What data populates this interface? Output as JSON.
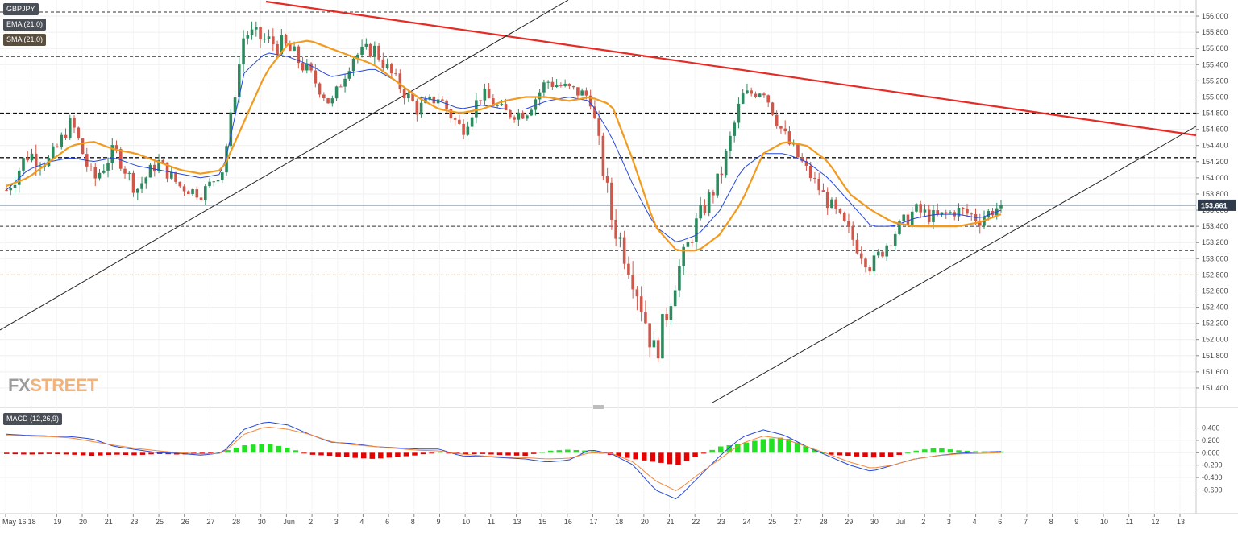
{
  "labels": {
    "symbol": "GBPJPY",
    "ema": "EMA (21,0)",
    "sma": "SMA (21,0)",
    "macd": "MACD (12,26,9)",
    "price_tag": "153.661",
    "watermark_fx": "FX",
    "watermark_street": "STREET"
  },
  "colors": {
    "bull": "#2c8a5e",
    "bear": "#d0584a",
    "ema": "#2547e0",
    "sma": "#f29a1e",
    "trend_red": "#e82a25",
    "trend_black": "#222222",
    "level_orange": "#f29a1e",
    "macd_hist_pos": "#22e022",
    "macd_hist_neg": "#e80000",
    "macd_line": "#2547e0",
    "signal_line": "#f2873a",
    "price_tag_bg": "#2f3b4a"
  },
  "chart_data": [
    {
      "type": "candlestick",
      "title": "GBPJPY",
      "ylim": [
        151.3,
        156.1
      ],
      "y_ticks": [
        "156.000",
        "155.800",
        "155.600",
        "155.400",
        "155.200",
        "155.000",
        "154.800",
        "154.600",
        "154.400",
        "154.200",
        "154.000",
        "153.800",
        "153.600",
        "153.400",
        "153.200",
        "153.000",
        "152.800",
        "152.600",
        "152.400",
        "152.200",
        "152.000",
        "151.800",
        "151.600",
        "151.400"
      ],
      "x_ticks": [
        "May 16",
        "18",
        "19",
        "20",
        "21",
        "23",
        "25",
        "26",
        "27",
        "28",
        "30",
        "Jun",
        "2",
        "3",
        "4",
        "6",
        "8",
        "9",
        "10",
        "11",
        "13",
        "15",
        "16",
        "17",
        "18",
        "20",
        "21",
        "22",
        "23",
        "24",
        "25",
        "27",
        "28",
        "29",
        "30",
        "Jul",
        "2",
        "3",
        "4",
        "6",
        "7",
        "8",
        "9",
        "10",
        "11",
        "12",
        "13"
      ],
      "last_price": 153.661,
      "levels": [
        {
          "value": 156.05,
          "style": "dashed",
          "color": "#333333"
        },
        {
          "value": 155.5,
          "style": "dashed",
          "color": "#333333"
        },
        {
          "value": 154.8,
          "style": "dashed-bold",
          "color": "#111111"
        },
        {
          "value": 154.25,
          "style": "dashed-bold",
          "color": "#111111"
        },
        {
          "value": 153.4,
          "style": "dashed",
          "color": "#333333"
        },
        {
          "value": 153.1,
          "style": "dashed",
          "color": "#333333"
        },
        {
          "value": 152.8,
          "style": "dashed",
          "color": "#f29a1e"
        }
      ],
      "anchors_ohlc": [
        [
          153.85,
          154.15,
          153.5
        ],
        [
          154.3,
          154.7,
          154.0
        ],
        [
          154.2,
          154.5,
          153.9
        ],
        [
          154.7,
          154.9,
          154.45
        ],
        [
          153.95,
          154.25,
          153.6
        ],
        [
          154.35,
          154.5,
          154.0
        ],
        [
          153.85,
          154.15,
          153.65
        ],
        [
          154.2,
          154.45,
          153.95
        ],
        [
          153.9,
          154.1,
          153.7
        ],
        [
          153.8,
          154.1,
          153.7
        ],
        [
          154.1,
          154.3,
          153.95
        ],
        [
          155.8,
          156.0,
          155.4
        ],
        [
          155.7,
          156.0,
          155.4
        ],
        [
          155.6,
          155.9,
          155.2
        ],
        [
          155.3,
          155.5,
          155.0
        ],
        [
          154.9,
          155.1,
          154.7
        ],
        [
          155.5,
          155.7,
          155.2
        ],
        [
          155.6,
          155.8,
          155.3
        ],
        [
          155.2,
          155.4,
          154.9
        ],
        [
          154.85,
          155.1,
          154.6
        ],
        [
          155.0,
          155.2,
          154.8
        ],
        [
          154.6,
          154.9,
          154.2
        ],
        [
          155.05,
          155.2,
          154.8
        ],
        [
          154.8,
          155.1,
          154.6
        ],
        [
          154.8,
          155.0,
          154.6
        ],
        [
          155.2,
          155.45,
          154.9
        ],
        [
          155.1,
          155.3,
          154.9
        ],
        [
          155.0,
          155.3,
          154.8
        ],
        [
          153.5,
          154.0,
          153.1
        ],
        [
          152.8,
          153.3,
          152.3
        ],
        [
          151.8,
          152.3,
          151.35
        ],
        [
          152.8,
          153.1,
          152.4
        ],
        [
          153.5,
          153.8,
          153.2
        ],
        [
          154.0,
          154.3,
          153.7
        ],
        [
          155.0,
          155.2,
          154.7
        ],
        [
          155.1,
          155.2,
          154.8
        ],
        [
          154.5,
          154.8,
          154.2
        ],
        [
          154.1,
          154.3,
          153.9
        ],
        [
          153.7,
          154.0,
          153.5
        ],
        [
          153.3,
          153.6,
          153.0
        ],
        [
          152.9,
          153.2,
          152.65
        ],
        [
          153.3,
          153.5,
          153.0
        ],
        [
          153.6,
          153.9,
          153.4
        ],
        [
          153.5,
          153.8,
          153.3
        ],
        [
          153.6,
          153.8,
          153.4
        ],
        [
          153.5,
          153.7,
          153.1
        ],
        [
          153.66,
          153.8,
          153.45
        ]
      ],
      "series": [
        {
          "name": "EMA (21,0)",
          "values": [
            153.85,
            154.1,
            154.2,
            154.25,
            154.2,
            154.25,
            154.15,
            154.1,
            154.05,
            154.0,
            154.05,
            155.3,
            155.55,
            155.5,
            155.4,
            155.25,
            155.3,
            155.35,
            155.2,
            155.0,
            154.95,
            154.85,
            154.9,
            154.85,
            154.85,
            154.95,
            155.0,
            154.95,
            154.5,
            153.9,
            153.4,
            153.2,
            153.3,
            153.6,
            154.1,
            154.3,
            154.3,
            154.2,
            154.0,
            153.7,
            153.4,
            153.4,
            153.5,
            153.55,
            153.55,
            153.5,
            153.6
          ]
        },
        {
          "name": "SMA (21,0)",
          "values": [
            153.9,
            154.0,
            154.2,
            154.4,
            154.45,
            154.35,
            154.3,
            154.2,
            154.1,
            154.05,
            154.1,
            154.7,
            155.3,
            155.65,
            155.7,
            155.6,
            155.5,
            155.4,
            155.2,
            155.0,
            154.85,
            154.8,
            154.85,
            154.95,
            155.0,
            155.0,
            154.95,
            155.0,
            154.9,
            154.2,
            153.4,
            153.1,
            153.1,
            153.3,
            153.7,
            154.3,
            154.45,
            154.4,
            154.2,
            153.8,
            153.6,
            153.45,
            153.4,
            153.4,
            153.4,
            153.45,
            153.55
          ]
        }
      ]
    },
    {
      "type": "macd",
      "title": "MACD (12,26,9)",
      "ylim": [
        -0.75,
        0.55
      ],
      "y_ticks": [
        "0.400",
        "0.200",
        "0.000",
        "-0.200",
        "-0.400",
        "-0.600"
      ],
      "series": [
        {
          "name": "MACD",
          "values": [
            0.3,
            0.28,
            0.27,
            0.26,
            0.22,
            0.1,
            0.05,
            0.0,
            -0.01,
            -0.04,
            0.0,
            0.38,
            0.5,
            0.45,
            0.3,
            0.17,
            0.15,
            0.1,
            0.08,
            0.06,
            0.06,
            -0.05,
            -0.06,
            -0.08,
            -0.1,
            -0.15,
            -0.12,
            0.05,
            -0.02,
            -0.2,
            -0.6,
            -0.75,
            -0.4,
            -0.05,
            0.25,
            0.37,
            0.28,
            0.1,
            -0.05,
            -0.2,
            -0.3,
            -0.2,
            -0.1,
            -0.05,
            -0.01,
            0.01,
            0.02
          ]
        },
        {
          "name": "Signal",
          "values": [
            0.28,
            0.27,
            0.26,
            0.24,
            0.18,
            0.12,
            0.07,
            0.03,
            0.0,
            -0.02,
            -0.01,
            0.3,
            0.42,
            0.38,
            0.3,
            0.18,
            0.13,
            0.1,
            0.07,
            0.04,
            0.03,
            -0.02,
            -0.05,
            -0.07,
            -0.08,
            -0.1,
            -0.09,
            0.0,
            -0.01,
            -0.15,
            -0.45,
            -0.62,
            -0.35,
            -0.1,
            0.15,
            0.27,
            0.22,
            0.1,
            -0.02,
            -0.15,
            -0.25,
            -0.2,
            -0.1,
            -0.05,
            -0.02,
            -0.01,
            0.0
          ]
        },
        {
          "name": "Histogram",
          "values": [
            -0.02,
            -0.03,
            -0.02,
            -0.03,
            -0.05,
            -0.03,
            -0.04,
            -0.02,
            -0.03,
            -0.02,
            0.02,
            0.12,
            0.15,
            0.08,
            -0.03,
            -0.05,
            -0.08,
            -0.1,
            -0.07,
            -0.04,
            0.02,
            -0.03,
            -0.02,
            -0.04,
            -0.05,
            0.03,
            0.05,
            0.03,
            -0.04,
            -0.1,
            -0.15,
            -0.2,
            -0.05,
            0.1,
            0.15,
            0.22,
            0.25,
            0.1,
            -0.03,
            -0.05,
            -0.08,
            -0.06,
            0.03,
            0.08,
            0.04,
            0.02,
            0.02
          ]
        }
      ]
    }
  ]
}
